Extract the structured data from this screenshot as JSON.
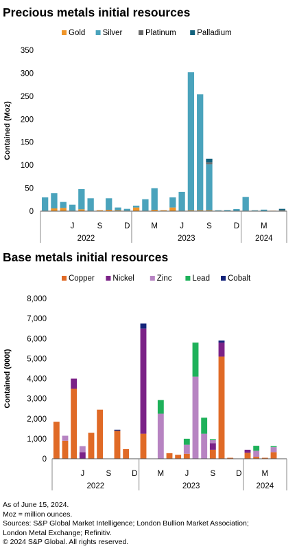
{
  "charts_title": "",
  "chart_data": [
    {
      "type": "bar",
      "stacked": true,
      "title": "Precious metals initial resources",
      "ylabel": "Contained (Moz)",
      "xlabel": "",
      "ylim": [
        0,
        350
      ],
      "yticks": [
        0,
        50,
        100,
        150,
        200,
        250,
        300,
        350
      ],
      "legend_position": "top",
      "grid": false,
      "x_month_ticks": [
        {
          "label": "J",
          "index": 3
        },
        {
          "label": "S",
          "index": 6
        },
        {
          "label": "D",
          "index": 9
        },
        {
          "label": "M",
          "index": 12
        },
        {
          "label": "J",
          "index": 15
        },
        {
          "label": "S",
          "index": 18
        },
        {
          "label": "D",
          "index": 21
        },
        {
          "label": "M",
          "index": 24
        }
      ],
      "x_year_groups": [
        {
          "label": "2022",
          "start": 0,
          "end": 10
        },
        {
          "label": "2023",
          "start": 10,
          "end": 22
        },
        {
          "label": "2024",
          "start": 22,
          "end": 27
        }
      ],
      "categories": [
        "2022-01",
        "2022-02",
        "2022-03",
        "2022-04",
        "2022-05",
        "2022-06",
        "2022-07",
        "2022-08",
        "2022-09",
        "2022-10",
        "2022-11",
        "2022-12",
        "2023-01",
        "2023-02",
        "2023-03",
        "2023-04",
        "2023-05",
        "2023-06",
        "2023-07",
        "2023-08",
        "2023-09",
        "2023-10",
        "2023-11",
        "2023-12",
        "2024-01",
        "2024-02",
        "2024-03"
      ],
      "series": [
        {
          "name": "Gold",
          "color": "#f0962a",
          "values": [
            1,
            6,
            7,
            1,
            4,
            1,
            2,
            3,
            2,
            1,
            8,
            1,
            3,
            2,
            8,
            1,
            2,
            2,
            2,
            1,
            0.3,
            0.5,
            1,
            1,
            0.3,
            1,
            1
          ]
        },
        {
          "name": "Silver",
          "color": "#4aa3bc",
          "values": [
            29,
            33,
            13,
            13,
            44,
            27,
            0,
            25,
            6,
            4,
            4,
            25,
            47,
            0,
            22,
            41,
            300,
            252,
            100,
            1,
            2,
            4,
            30,
            1,
            3,
            0,
            0
          ]
        },
        {
          "name": "Platinum",
          "color": "#6b6b6b",
          "values": [
            0,
            0,
            0,
            0,
            0,
            0,
            0,
            0,
            0,
            0,
            0,
            0,
            0,
            0,
            0,
            0,
            0,
            0,
            4,
            0,
            0,
            0,
            0,
            0,
            0,
            0,
            1
          ]
        },
        {
          "name": "Palladium",
          "color": "#13627d",
          "values": [
            0,
            0,
            0,
            0,
            0,
            0,
            0,
            0,
            0,
            0,
            0,
            0,
            0,
            0,
            0,
            0,
            0,
            0,
            8,
            0,
            0,
            0,
            0,
            0,
            0,
            0,
            3
          ]
        }
      ]
    },
    {
      "type": "bar",
      "stacked": true,
      "title": "Base metals initial resources",
      "ylabel": "Contained (000t)",
      "xlabel": "",
      "ylim": [
        0,
        8000
      ],
      "yticks": [
        0,
        1000,
        2000,
        3000,
        4000,
        5000,
        6000,
        7000,
        8000
      ],
      "ytick_labels": [
        "0",
        "1,000",
        "2,000",
        "3,000",
        "4,000",
        "5,000",
        "6,000",
        "7,000",
        "8,000"
      ],
      "legend_position": "top",
      "grid": false,
      "x_month_ticks": [
        {
          "label": "J",
          "index": 3
        },
        {
          "label": "S",
          "index": 6
        },
        {
          "label": "D",
          "index": 9
        },
        {
          "label": "M",
          "index": 12
        },
        {
          "label": "J",
          "index": 15
        },
        {
          "label": "S",
          "index": 18
        },
        {
          "label": "D",
          "index": 21
        },
        {
          "label": "M",
          "index": 24
        }
      ],
      "x_year_groups": [
        {
          "label": "2022",
          "start": 0,
          "end": 10
        },
        {
          "label": "2023",
          "start": 10,
          "end": 22
        },
        {
          "label": "2024",
          "start": 22,
          "end": 27
        }
      ],
      "categories": [
        "2022-01",
        "2022-02",
        "2022-03",
        "2022-04",
        "2022-05",
        "2022-06",
        "2022-07",
        "2022-08",
        "2022-09",
        "2022-10",
        "2022-11",
        "2022-12",
        "2023-01",
        "2023-02",
        "2023-03",
        "2023-04",
        "2023-05",
        "2023-06",
        "2023-07",
        "2023-08",
        "2023-09",
        "2023-10",
        "2023-11",
        "2023-12",
        "2024-01",
        "2024-02",
        "2024-03"
      ],
      "series": [
        {
          "name": "Copper",
          "color": "#e06a26",
          "values": [
            1850,
            900,
            3500,
            0,
            1300,
            2450,
            0,
            1400,
            480,
            0,
            1250,
            0,
            0,
            280,
            200,
            250,
            0,
            0,
            450,
            5100,
            50,
            0,
            300,
            100,
            50,
            330,
            0
          ]
        },
        {
          "name": "Nickel",
          "color": "#7b2287",
          "values": [
            0,
            0,
            500,
            330,
            0,
            0,
            0,
            0,
            0,
            0,
            5250,
            0,
            0,
            0,
            0,
            0,
            0,
            0,
            330,
            700,
            0,
            0,
            150,
            0,
            0,
            0,
            0
          ]
        },
        {
          "name": "Zinc",
          "color": "#b784c2",
          "values": [
            0,
            250,
            0,
            300,
            0,
            0,
            0,
            0,
            0,
            0,
            0,
            0,
            2250,
            0,
            0,
            450,
            4100,
            1250,
            150,
            0,
            0,
            0,
            0,
            300,
            0,
            250,
            0
          ]
        },
        {
          "name": "Lead",
          "color": "#1eb15a",
          "values": [
            0,
            0,
            0,
            0,
            0,
            0,
            0,
            0,
            0,
            0,
            0,
            0,
            680,
            0,
            0,
            300,
            1700,
            800,
            50,
            0,
            0,
            0,
            0,
            250,
            0,
            50,
            0
          ]
        },
        {
          "name": "Cobalt",
          "color": "#14247a",
          "values": [
            0,
            0,
            0,
            0,
            0,
            0,
            0,
            50,
            0,
            0,
            250,
            0,
            0,
            0,
            0,
            0,
            0,
            0,
            0,
            100,
            0,
            0,
            0,
            0,
            0,
            0,
            0
          ]
        }
      ]
    }
  ],
  "notes": [
    "As of June 15, 2024.",
    "Moz = million ounces.",
    "Sources: S&P Global Market Intelligence; London Bullion Market Association;",
    "London Metal Exchange; Refinitiv.",
    "© 2024 S&P Global. All rights reserved."
  ]
}
